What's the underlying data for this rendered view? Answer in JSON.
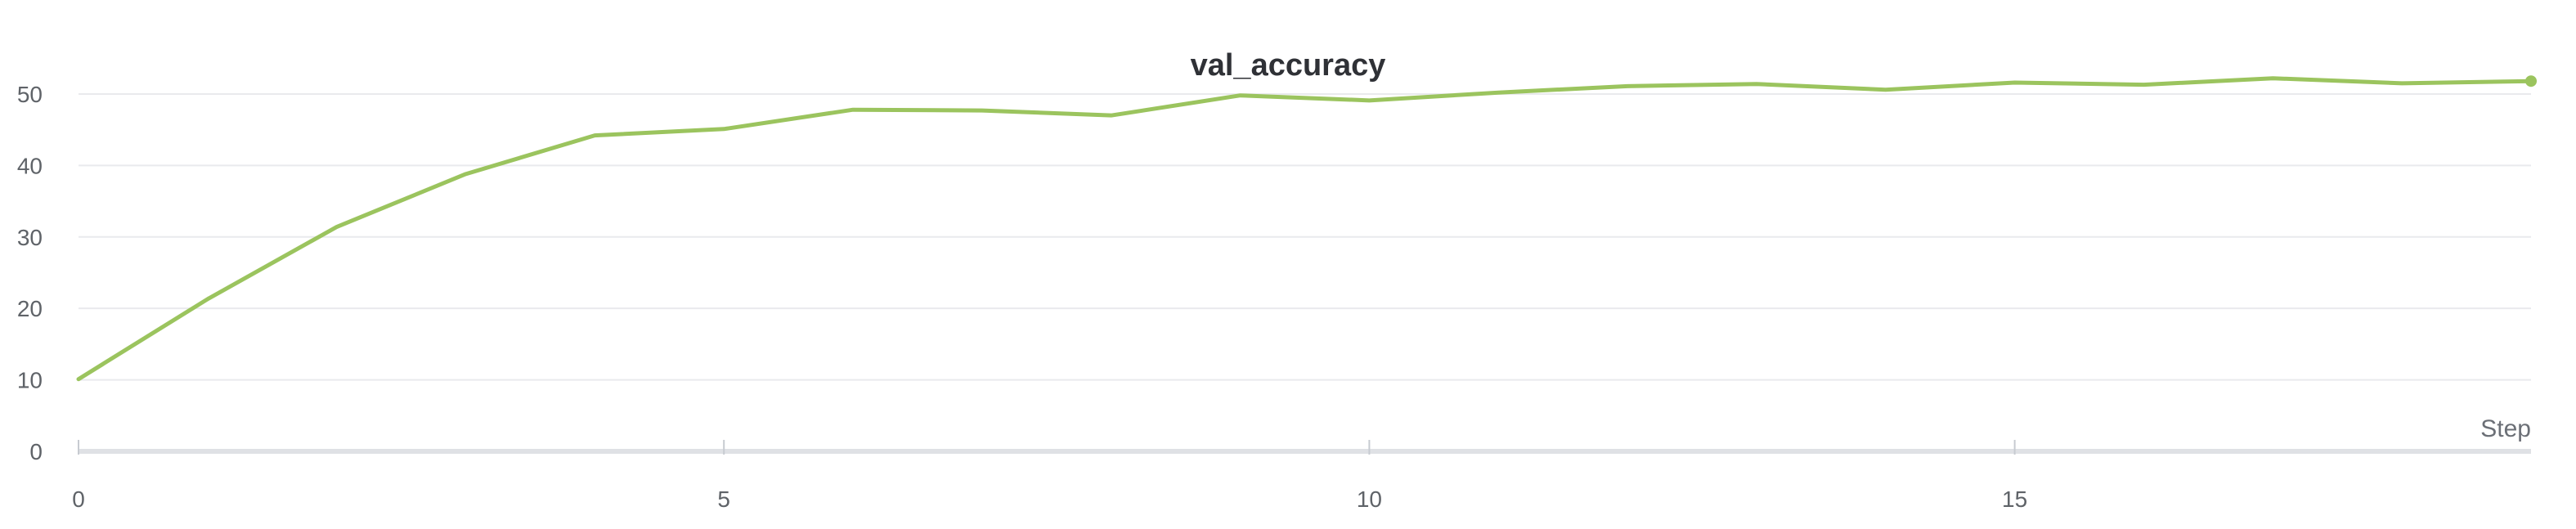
{
  "chart_data": {
    "type": "line",
    "title": "val_accuracy",
    "xlabel": "Step",
    "ylabel": "",
    "xlim": [
      0,
      19
    ],
    "ylim": [
      0,
      54
    ],
    "x_ticks": [
      0,
      5,
      10,
      15
    ],
    "y_ticks": [
      0,
      10,
      20,
      30,
      40,
      50
    ],
    "grid": true,
    "legend": "none",
    "series": [
      {
        "color": "#9bc45e",
        "x": [
          0,
          1,
          2,
          3,
          4,
          5,
          6,
          7,
          8,
          9,
          10,
          11,
          12,
          13,
          14,
          15,
          16,
          17,
          18,
          19
        ],
        "values": [
          10.1,
          21.3,
          31.4,
          38.8,
          44.2,
          45.1,
          47.8,
          47.7,
          47.0,
          49.8,
          49.1,
          50.2,
          51.1,
          51.4,
          50.6,
          51.6,
          51.3,
          52.2,
          51.5,
          51.8
        ]
      }
    ]
  }
}
